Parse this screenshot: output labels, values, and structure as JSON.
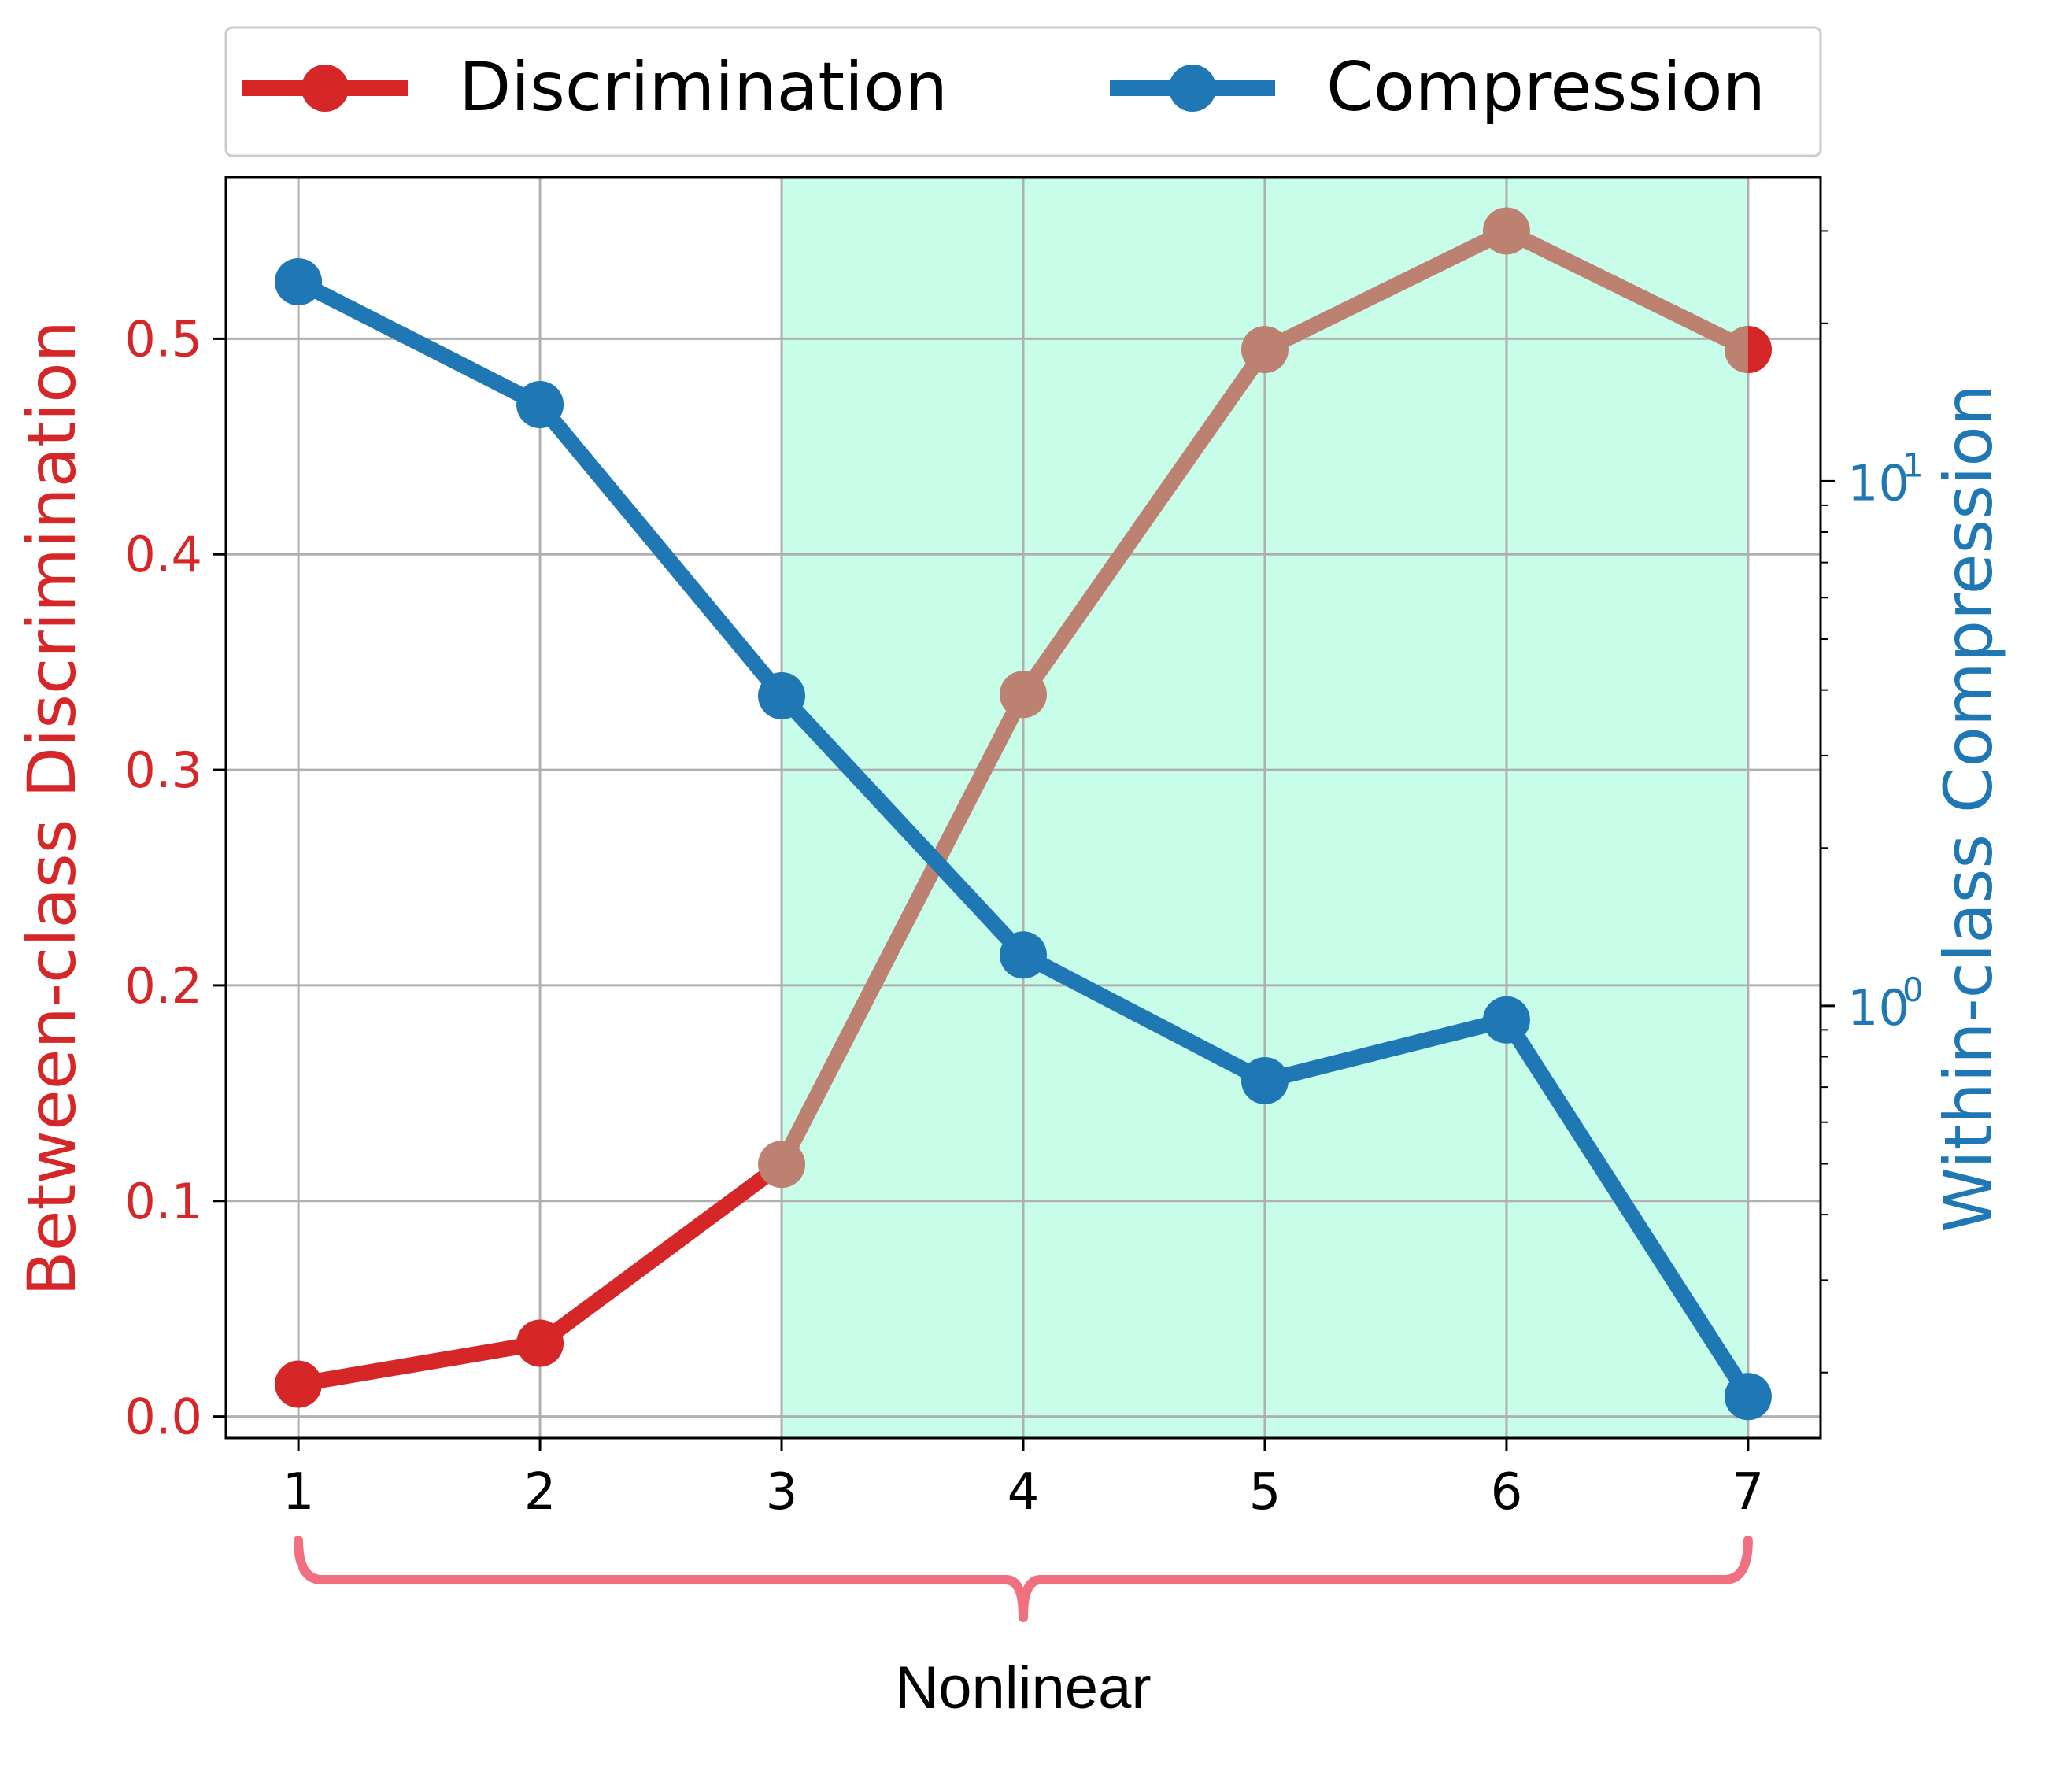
{
  "chart_data": {
    "type": "line",
    "x": [
      1,
      2,
      3,
      4,
      5,
      6,
      7
    ],
    "xticks": [
      "1",
      "2",
      "3",
      "4",
      "5",
      "6",
      "7"
    ],
    "series": [
      {
        "name": "Discrimination",
        "axis": "left",
        "color": "#d62728",
        "highlight_color": "#bc8170",
        "values": [
          0.015,
          0.034,
          0.117,
          0.335,
          0.495,
          0.55,
          0.495
        ]
      },
      {
        "name": "Compression",
        "axis": "right",
        "color": "#1f77b4",
        "values": [
          24.0,
          14.0,
          3.9,
          1.25,
          0.72,
          0.94,
          0.18
        ]
      }
    ],
    "ylabel_left": "Between-class Discrimination",
    "ylabel_right": "Within-class Compression",
    "ylim_left": [
      -0.01,
      0.575
    ],
    "yticks_left": [
      "0.0",
      "0.1",
      "0.2",
      "0.3",
      "0.4",
      "0.5"
    ],
    "yscale_right": "log",
    "ylim_right": [
      0.15,
      38
    ],
    "yticks_right_major": [
      1,
      10
    ],
    "yticks_right_labels": [
      "10",
      "10"
    ],
    "yticks_right_exponents": [
      "0",
      "1"
    ],
    "xlim": [
      0.7,
      7.3
    ],
    "shaded_region": {
      "x_start": 3,
      "x_end": 7,
      "color": "#c8fdea",
      "edge": "#8ee8c6"
    },
    "grid": true,
    "legend_position": "top-center",
    "annotation": {
      "text": "Nonlinear",
      "brace_from": 1,
      "brace_to": 7,
      "color": "#f07080"
    }
  }
}
